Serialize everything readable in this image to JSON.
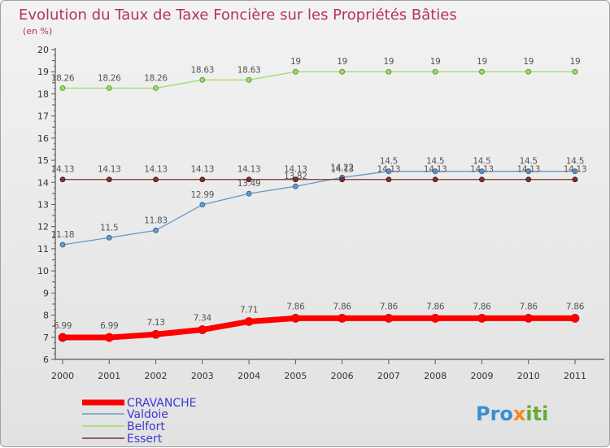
{
  "chart_data": {
    "type": "line",
    "title": "Evolution du Taux de Taxe Foncière sur les Propriétés Bâties",
    "subtitle": "(en %)",
    "x": [
      "2000",
      "2001",
      "2002",
      "2003",
      "2004",
      "2005",
      "2006",
      "2007",
      "2008",
      "2009",
      "2010",
      "2011"
    ],
    "ylim": [
      6,
      20
    ],
    "yticks": [
      6,
      7,
      8,
      9,
      10,
      11,
      12,
      13,
      14,
      15,
      16,
      17,
      18,
      19,
      20
    ],
    "grid": false,
    "series": [
      {
        "name": "CRAVANCHE",
        "color": "#ff0000",
        "values": [
          6.99,
          6.99,
          7.13,
          7.34,
          7.71,
          7.86,
          7.86,
          7.86,
          7.86,
          7.86,
          7.86,
          7.86
        ],
        "labels": [
          "6.99",
          "6.99",
          "7.13",
          "7.34",
          "7.71",
          "7.86",
          "7.86",
          "7.86",
          "7.86",
          "7.86",
          "7.86",
          "7.86"
        ]
      },
      {
        "name": "Valdoie",
        "color": "#6699cc",
        "values": [
          11.18,
          11.5,
          11.83,
          12.99,
          13.49,
          13.82,
          14.22,
          14.5,
          14.5,
          14.5,
          14.5,
          14.5
        ],
        "labels": [
          "11.18",
          "11.5",
          "11.83",
          "12.99",
          "13.49",
          "13.82",
          "14.22",
          "14.5",
          "14.5",
          "14.5",
          "14.5",
          "14.5"
        ]
      },
      {
        "name": "Belfort",
        "color": "#99dd66",
        "values": [
          18.26,
          18.26,
          18.26,
          18.63,
          18.63,
          19,
          19,
          19,
          19,
          19,
          19,
          19
        ],
        "labels": [
          "18.26",
          "18.26",
          "18.26",
          "18.63",
          "18.63",
          "19",
          "19",
          "19",
          "19",
          "19",
          "19",
          "19"
        ]
      },
      {
        "name": "Essert",
        "color": "#773333",
        "values": [
          14.13,
          14.13,
          14.13,
          14.13,
          14.13,
          14.13,
          14.13,
          14.13,
          14.13,
          14.13,
          14.13,
          14.13
        ],
        "labels": [
          "14.13",
          "14.13",
          "14.13",
          "14.13",
          "14.13",
          "14.13",
          "14.13",
          "14.13",
          "14.13",
          "14.13",
          "14.13",
          "14.13"
        ]
      }
    ]
  },
  "logo": {
    "p1": "Pro",
    "x": "x",
    "p2": "iti"
  }
}
